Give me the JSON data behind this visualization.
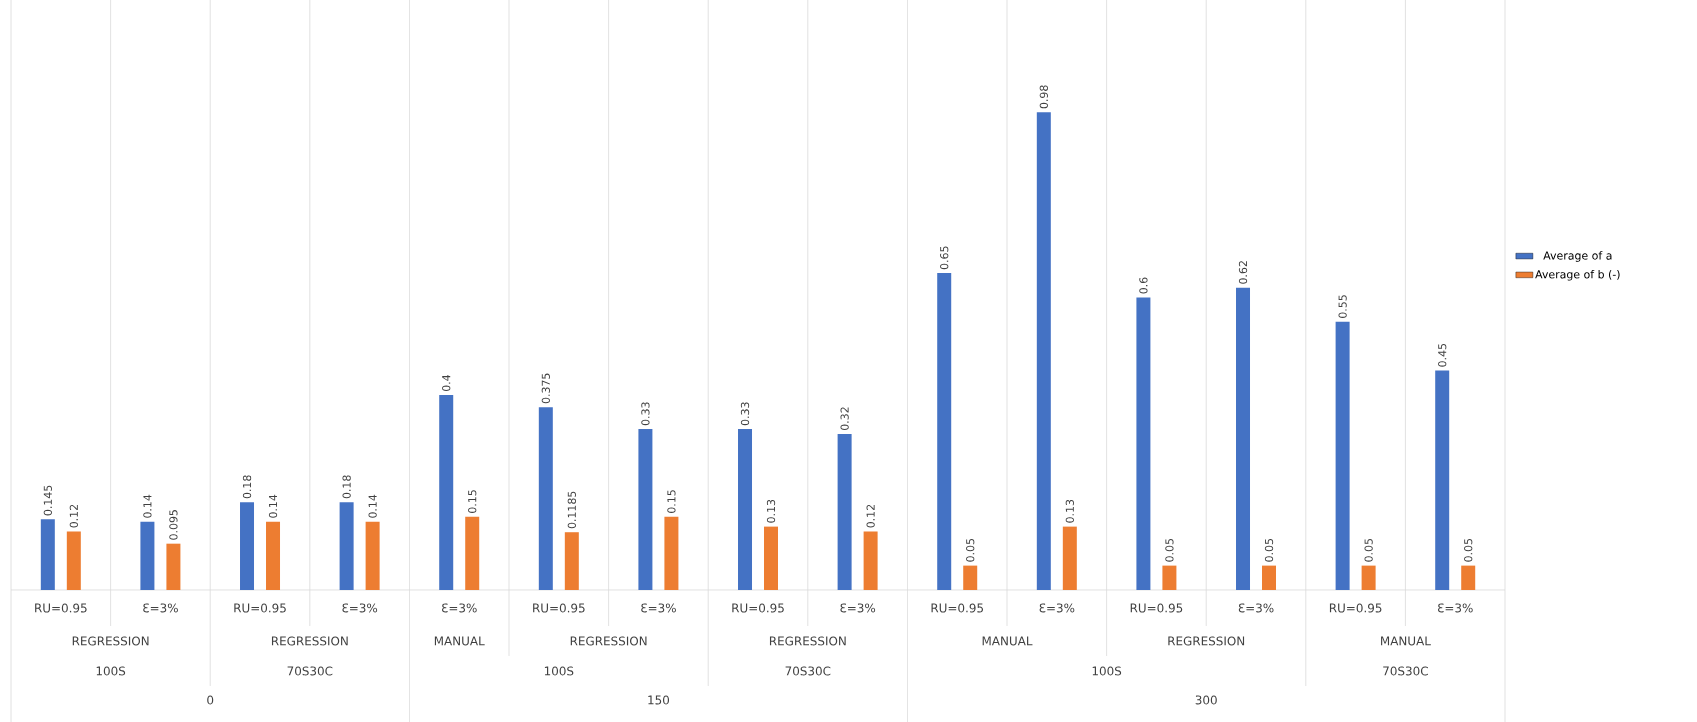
{
  "chart_data": {
    "type": "bar",
    "categories": [
      "RU=0.95",
      "Ɛ=3%",
      "RU=0.95",
      "Ɛ=3%",
      "Ɛ=3%",
      "RU=0.95",
      "Ɛ=3%",
      "RU=0.95",
      "Ɛ=3%",
      "RU=0.95",
      "Ɛ=3%",
      "RU=0.95",
      "Ɛ=3%",
      "RU=0.95",
      "Ɛ=3%"
    ],
    "series": [
      {
        "name": "Average of a",
        "color": "#4472c4",
        "values": [
          0.145,
          0.14,
          0.18,
          0.18,
          0.4,
          0.375,
          0.33,
          0.33,
          0.32,
          0.65,
          0.98,
          0.6,
          0.62,
          0.55,
          0.45
        ]
      },
      {
        "name": "Average of b (-)",
        "color": "#ed7d31",
        "values": [
          0.12,
          0.095,
          0.14,
          0.14,
          0.15,
          0.1185,
          0.15,
          0.13,
          0.12,
          0.05,
          0.13,
          0.05,
          0.05,
          0.05,
          0.05
        ]
      }
    ],
    "annotations": [
      "REGRESSION",
      "REGRESSION",
      "MANUAL",
      "REGRESSION",
      "REGRESSION",
      "MANUAL",
      "REGRESSION",
      "MANUAL",
      "100S",
      "70S30C",
      "100S",
      "70S30C",
      "100S",
      "70S30C",
      "0",
      "150",
      "300"
    ],
    "data_labels": true,
    "legend": "right"
  }
}
